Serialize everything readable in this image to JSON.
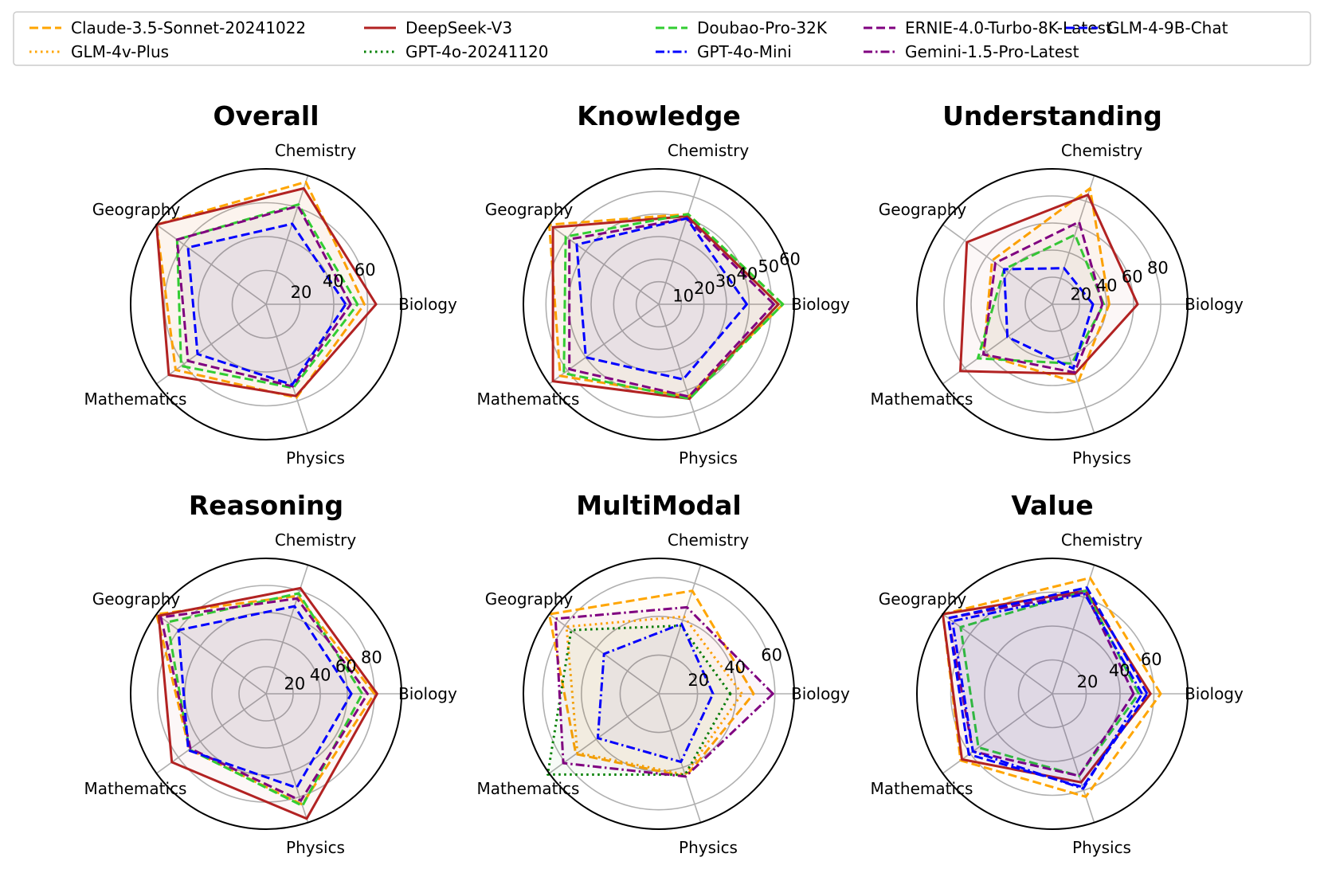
{
  "chart_data": {
    "type": "radar",
    "axes": [
      "Biology",
      "Chemistry",
      "Geography",
      "Mathematics",
      "Physics"
    ],
    "models": [
      {
        "name": "Claude-3.5-Sonnet-20241022",
        "color": "#ffa500",
        "dash": "dashed"
      },
      {
        "name": "DeepSeek-V3",
        "color": "#b22222",
        "dash": "solid"
      },
      {
        "name": "Doubao-Pro-32K",
        "color": "#32cd32",
        "dash": "dashed"
      },
      {
        "name": "ERNIE-4.0-Turbo-8K-Latest",
        "color": "#800080",
        "dash": "dashed"
      },
      {
        "name": "GLM-4-9B-Chat",
        "color": "#0000ff",
        "dash": "dashed"
      },
      {
        "name": "GLM-4v-Plus",
        "color": "#ffa500",
        "dash": "dotted"
      },
      {
        "name": "GPT-4o-20241120",
        "color": "#008000",
        "dash": "dotted"
      },
      {
        "name": "GPT-4o-Mini",
        "color": "#0000ff",
        "dashdot": true,
        "dash": "dashdot"
      },
      {
        "name": "Gemini-1.5-Pro-Latest",
        "color": "#800080",
        "dash": "dashdot"
      }
    ],
    "charts": [
      {
        "title": "Overall",
        "max": 80,
        "ticks": [
          20,
          40,
          60
        ],
        "series": [
          {
            "model": "Claude-3.5-Sonnet-20241022",
            "values": [
              58,
              76,
              80,
              66,
              58
            ]
          },
          {
            "model": "DeepSeek-V3",
            "values": [
              65,
              72,
              80,
              71,
              57
            ]
          },
          {
            "model": "Doubao-Pro-32K",
            "values": [
              54,
              62,
              65,
              62,
              52
            ]
          },
          {
            "model": "ERNIE-4.0-Turbo-8K-Latest",
            "values": [
              50,
              61,
              65,
              57,
              51
            ]
          },
          {
            "model": "GLM-4-9B-Chat",
            "values": [
              47,
              50,
              57,
              50,
              50
            ]
          }
        ]
      },
      {
        "title": "Knowledge",
        "max": 60,
        "ticks": [
          10,
          20,
          30,
          40,
          50,
          60
        ],
        "series": [
          {
            "model": "Claude-3.5-Sonnet-20241022",
            "values": [
              55,
              42,
              60,
              54,
              43
            ]
          },
          {
            "model": "DeepSeek-V3",
            "values": [
              53,
              41,
              58,
              58,
              44
            ]
          },
          {
            "model": "Doubao-Pro-32K",
            "values": [
              55,
              42,
              51,
              52,
              44
            ]
          },
          {
            "model": "ERNIE-4.0-Turbo-8K-Latest",
            "values": [
              51,
              40,
              49,
              49,
              43
            ]
          },
          {
            "model": "GLM-4-9B-Chat",
            "values": [
              39,
              40,
              45,
              40,
              35
            ]
          }
        ]
      },
      {
        "title": "Understanding",
        "max": 100,
        "ticks": [
          20,
          40,
          60,
          80
        ],
        "series": [
          {
            "model": "Claude-3.5-Sonnet-20241022",
            "values": [
              42,
              90,
              55,
              63,
              61
            ]
          },
          {
            "model": "DeepSeek-V3",
            "values": [
              63,
              85,
              78,
              84,
              54
            ]
          },
          {
            "model": "Doubao-Pro-32K",
            "values": [
              38,
              54,
              44,
              68,
              46
            ]
          },
          {
            "model": "ERNIE-4.0-Turbo-8K-Latest",
            "values": [
              37,
              64,
              52,
              63,
              53
            ]
          },
          {
            "model": "GLM-4-9B-Chat",
            "values": [
              30,
              28,
              44,
              41,
              50
            ]
          }
        ]
      },
      {
        "title": "Reasoning",
        "max": 100,
        "ticks": [
          20,
          40,
          60,
          80
        ],
        "series": [
          {
            "model": "Claude-3.5-Sonnet-20241022",
            "values": [
              80,
              76,
              100,
              70,
              86
            ]
          },
          {
            "model": "DeepSeek-V3",
            "values": [
              82,
              82,
              98,
              86,
              97
            ]
          },
          {
            "model": "Doubao-Pro-32K",
            "values": [
              71,
              78,
              90,
              70,
              87
            ]
          },
          {
            "model": "ERNIE-4.0-Turbo-8K-Latest",
            "values": [
              75,
              74,
              96,
              69,
              83
            ]
          },
          {
            "model": "GLM-4-9B-Chat",
            "values": [
              63,
              68,
              80,
              71,
              73
            ]
          }
        ]
      },
      {
        "title": "MultiModal",
        "max": 70,
        "ticks": [
          20,
          40,
          60
        ],
        "series": [
          {
            "model": "Claude-3.5-Sonnet-20241022",
            "values": [
              49,
              56,
              70,
              53,
              45
            ]
          },
          {
            "model": "GLM-4v-Plus",
            "values": [
              43,
              42,
              59,
              52,
              44
            ]
          },
          {
            "model": "GPT-4o-20241120",
            "values": [
              37,
              37,
              56,
              71,
              44
            ]
          },
          {
            "model": "GPT-4o-Mini",
            "values": [
              28,
              38,
              35,
              39,
              37
            ]
          },
          {
            "model": "Gemini-1.5-Pro-Latest",
            "values": [
              59,
              47,
              66,
              61,
              45
            ]
          }
        ]
      },
      {
        "title": "Value",
        "max": 80,
        "ticks": [
          20,
          40,
          60
        ],
        "series": [
          {
            "model": "Claude-3.5-Sonnet-20241022",
            "values": [
              64,
              72,
              80,
              67,
              64
            ]
          },
          {
            "model": "DeepSeek-V3",
            "values": [
              58,
              64,
              80,
              66,
              55
            ]
          },
          {
            "model": "Doubao-Pro-32K",
            "values": [
              51,
              64,
              67,
              54,
              51
            ]
          },
          {
            "model": "ERNIE-4.0-Turbo-8K-Latest",
            "values": [
              48,
              63,
              76,
              58,
              51
            ]
          },
          {
            "model": "GLM-4-9B-Chat",
            "values": [
              56,
              66,
              76,
              61,
              58
            ]
          },
          {
            "model": "GPT-4o-Mini",
            "values": [
              53,
              62,
              73,
              58,
              59
            ]
          }
        ]
      }
    ]
  }
}
